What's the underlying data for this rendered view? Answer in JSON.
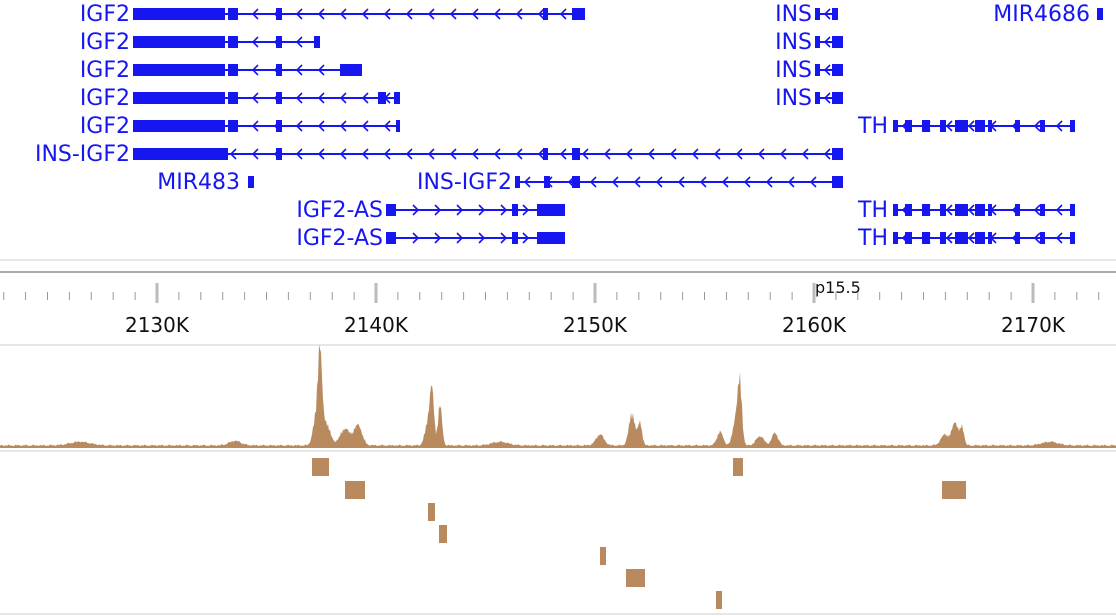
{
  "tracks": {
    "rows": [
      {
        "genes": [
          {
            "label": "IGF2"
          },
          {
            "label": "INS"
          },
          {
            "label": "MIR4686"
          }
        ]
      },
      {
        "genes": [
          {
            "label": "IGF2"
          },
          {
            "label": "INS"
          }
        ]
      },
      {
        "genes": [
          {
            "label": "IGF2"
          },
          {
            "label": "INS"
          }
        ]
      },
      {
        "genes": [
          {
            "label": "IGF2"
          },
          {
            "label": "INS"
          }
        ]
      },
      {
        "genes": [
          {
            "label": "IGF2"
          },
          {
            "label": "TH"
          }
        ]
      },
      {
        "genes": [
          {
            "label": "INS-IGF2"
          }
        ]
      },
      {
        "genes": [
          {
            "label": "MIR483"
          },
          {
            "label": "INS-IGF2"
          }
        ]
      },
      {
        "genes": [
          {
            "label": "IGF2-AS"
          },
          {
            "label": "TH"
          }
        ]
      },
      {
        "genes": [
          {
            "label": "IGF2-AS"
          },
          {
            "label": "TH"
          }
        ]
      }
    ]
  },
  "ruler": {
    "band": "p15.5",
    "ticks": [
      "2130K",
      "2140K",
      "2150K",
      "2160K",
      "2170K"
    ]
  }
}
